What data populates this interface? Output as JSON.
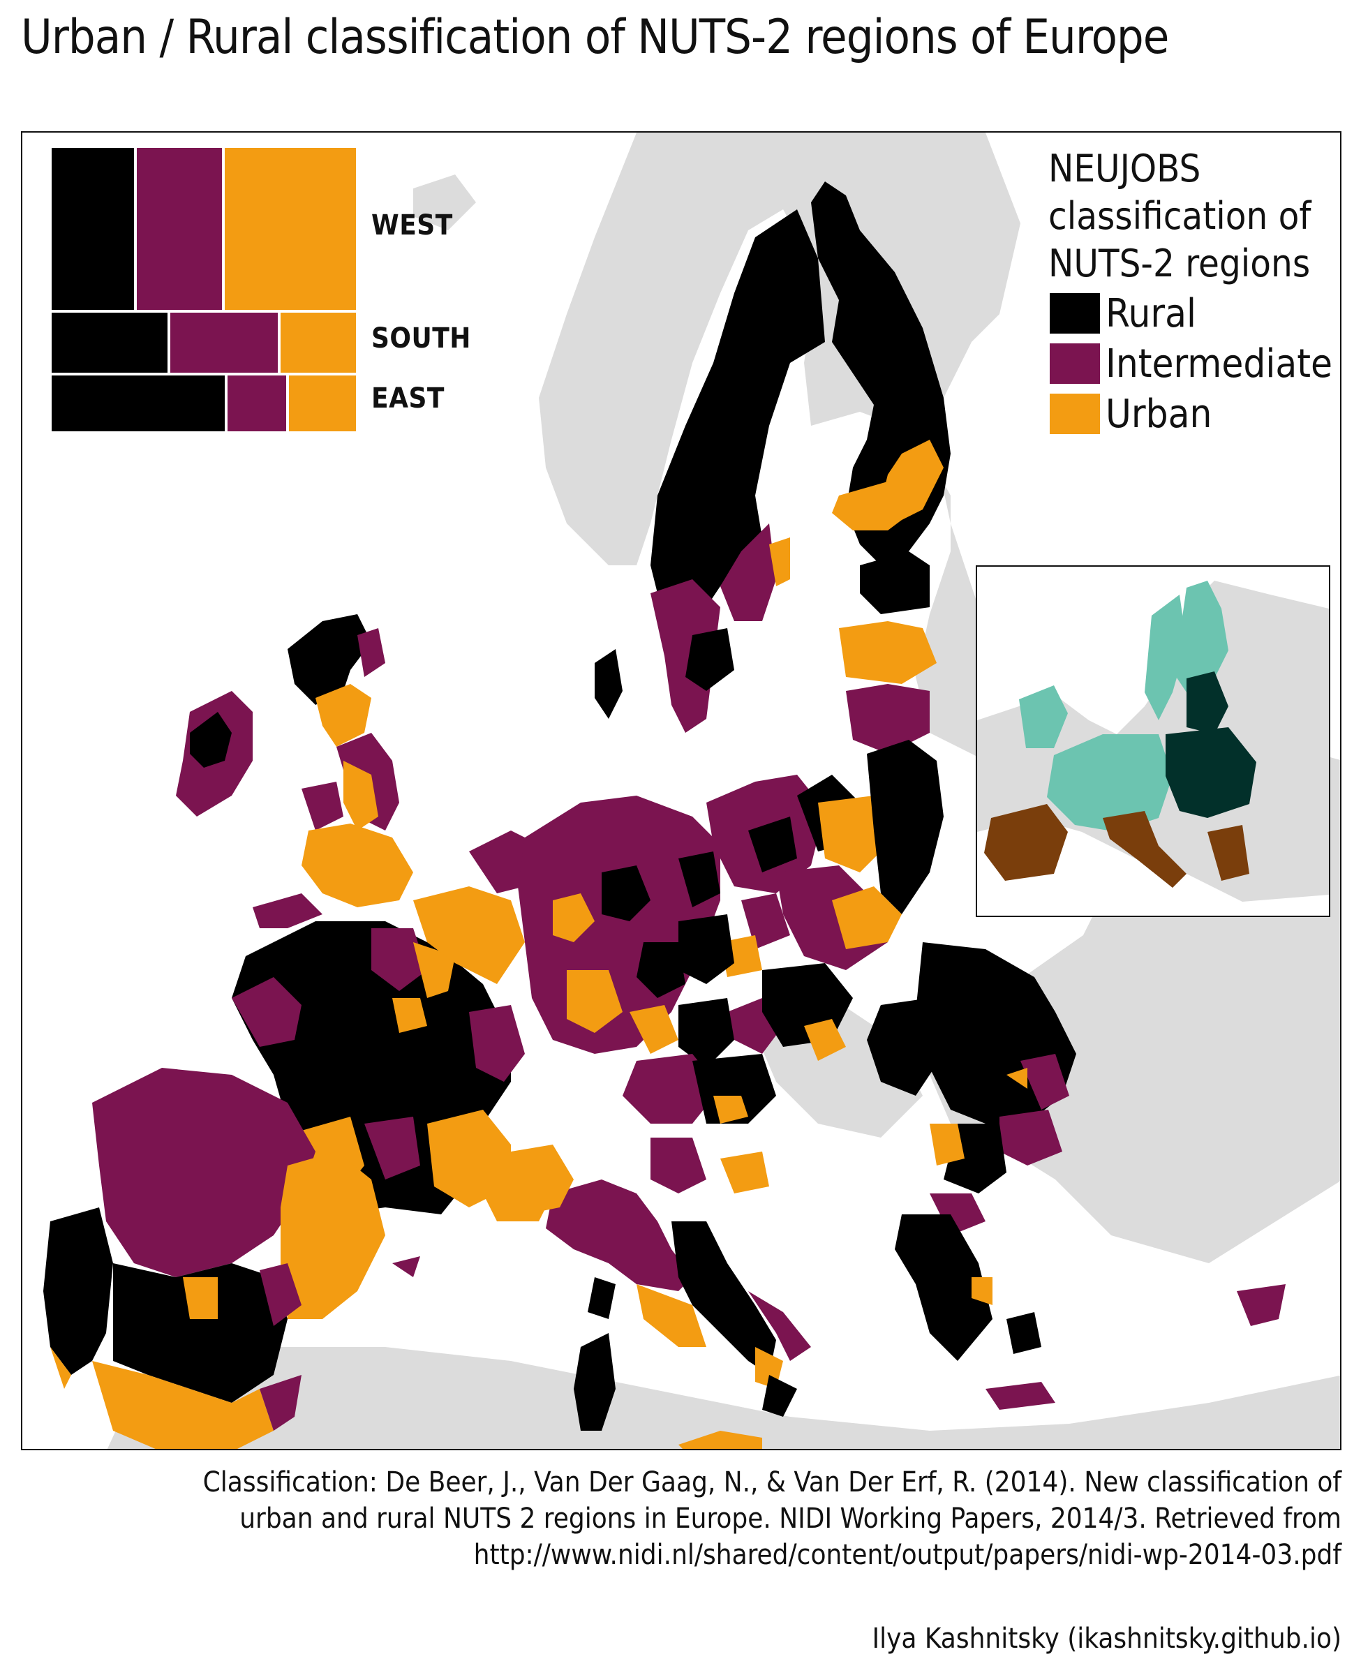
{
  "title": "Urban / Rural classification of NUTS-2 regions of Europe",
  "colors": {
    "rural": "#000000",
    "intermediate": "#7b1450",
    "urban": "#f39c12",
    "non_eu_land": "#dcdcdc",
    "sea": "#ffffff",
    "inset_west": "#6cc4b0",
    "inset_south": "#7a3e0c",
    "inset_east": "#02302a"
  },
  "legend": {
    "title": "NEUJOBS classification of NUTS-2 regions",
    "title_lines": [
      "NEUJOBS",
      "classification of",
      "NUTS-2 regions"
    ],
    "items": [
      {
        "label": "Rural",
        "color": "#000000"
      },
      {
        "label": "Intermediate",
        "color": "#7b1450"
      },
      {
        "label": "Urban",
        "color": "#f39c12"
      }
    ]
  },
  "mosaic": {
    "groups": [
      {
        "label": "WEST",
        "share_of_regions": 0.53,
        "shares": {
          "rural": 0.29,
          "intermediate": 0.29,
          "urban": 0.42
        }
      },
      {
        "label": "SOUTH",
        "share_of_regions": 0.24,
        "shares": {
          "rural": 0.39,
          "intermediate": 0.36,
          "urban": 0.25
        }
      },
      {
        "label": "EAST",
        "share_of_regions": 0.23,
        "shares": {
          "rural": 0.57,
          "intermediate": 0.2,
          "urban": 0.23
        }
      }
    ]
  },
  "inset": {
    "description_groups": [
      "West",
      "South",
      "East"
    ]
  },
  "caption": {
    "lines": [
      "Classification: De Beer, J., Van Der Gaag, N., & Van Der Erf, R. (2014). New classification of",
      "urban and rural NUTS 2 regions in Europe. NIDI Working Papers, 2014/3. Retrieved from",
      "http://www.nidi.nl/shared/content/output/papers/nidi-wp-2014-03.pdf"
    ]
  },
  "credit": "Ilya Kashnitsky (ikashnitsky.github.io)"
}
